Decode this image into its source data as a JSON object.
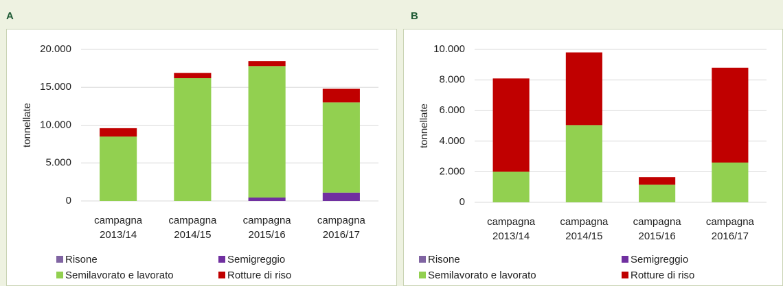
{
  "chart_data": [
    {
      "type": "bar",
      "stacked": true,
      "title": "A",
      "y_label": "tonnellate",
      "categories": [
        "campagna 2013/14",
        "campagna 2014/15",
        "campagna 2015/16",
        "campagna 2016/17"
      ],
      "series": [
        {
          "name": "Risone",
          "color": "#8064a2",
          "values": [
            0,
            0,
            0,
            0
          ]
        },
        {
          "name": "Semigreggio",
          "color": "#7030a0",
          "values": [
            0,
            0,
            450,
            1100
          ]
        },
        {
          "name": "Semilavorato e lavorato",
          "color": "#92d050",
          "values": [
            8500,
            16200,
            17350,
            11900
          ]
        },
        {
          "name": "Rotture di riso",
          "color": "#c00000",
          "values": [
            1100,
            700,
            650,
            1800
          ]
        }
      ],
      "ylim": [
        0,
        20000
      ],
      "yticks": [
        0,
        {
          "value": 5000,
          "label": "5.000"
        },
        {
          "value": 10000,
          "label": "10.000"
        },
        {
          "value": 15000,
          "label": "15.000"
        },
        {
          "value": 20000,
          "label": "20.000"
        }
      ],
      "grid": true
    },
    {
      "type": "bar",
      "stacked": true,
      "title": "B",
      "y_label": "tonnellate",
      "categories": [
        "campagna 2013/14",
        "campagna 2014/15",
        "campagna 2015/16",
        "campagna 2016/17"
      ],
      "series": [
        {
          "name": "Risone",
          "color": "#8064a2",
          "values": [
            0,
            0,
            0,
            0
          ]
        },
        {
          "name": "Semigreggio",
          "color": "#7030a0",
          "values": [
            0,
            0,
            0,
            0
          ]
        },
        {
          "name": "Semilavorato e lavorato",
          "color": "#92d050",
          "values": [
            2000,
            5050,
            1150,
            2600
          ]
        },
        {
          "name": "Rotture di riso",
          "color": "#c00000",
          "values": [
            6100,
            4750,
            500,
            6200
          ]
        }
      ],
      "ylim": [
        0,
        10000
      ],
      "yticks": [
        0,
        {
          "value": 2000,
          "label": "2.000"
        },
        {
          "value": 4000,
          "label": "4.000"
        },
        {
          "value": 6000,
          "label": "6.000"
        },
        {
          "value": 8000,
          "label": "8.000"
        },
        {
          "value": 10000,
          "label": "10.000"
        }
      ],
      "grid": true
    }
  ]
}
